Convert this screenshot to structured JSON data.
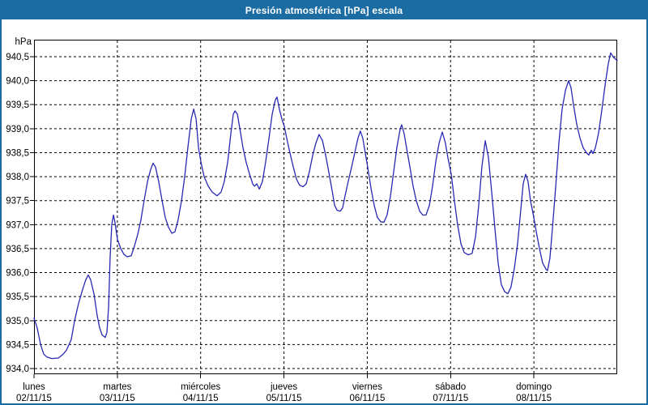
{
  "window": {
    "title": "Presión atmosférica [hPa] escala"
  },
  "colors": {
    "titlebar_bg": "#1b6ca3",
    "window_border": "#1b6ca3",
    "plot_frame": "#000000",
    "grid": "#000000",
    "line": "#2828b4",
    "text": "#000000",
    "title_text": "#ffffff",
    "background": "#ffffff"
  },
  "chart_data": {
    "type": "line",
    "title": "Presión atmosférica [hPa] escala",
    "grid": "dashed",
    "legend": "none",
    "y_axis": {
      "unit_label": "hPa",
      "min": 934.0,
      "max": 940.5,
      "tick_step": 0.5,
      "tick_labels": [
        "940,5",
        "940,0",
        "939,5",
        "939,0",
        "938,5",
        "938,0",
        "937,5",
        "937,0",
        "936,5",
        "936,0",
        "935,5",
        "935,0",
        "934,5",
        "934,0"
      ]
    },
    "x_axis": {
      "hours_total": 168,
      "days": [
        {
          "name": "lunes",
          "date": "02/11/15"
        },
        {
          "name": "martes",
          "date": "03/11/15"
        },
        {
          "name": "miércoles",
          "date": "04/11/15"
        },
        {
          "name": "jueves",
          "date": "05/11/15"
        },
        {
          "name": "viernes",
          "date": "06/11/15"
        },
        {
          "name": "sábado",
          "date": "07/11/15"
        },
        {
          "name": "domingo",
          "date": "08/11/15"
        }
      ]
    },
    "series": [
      {
        "name": "Presión atmosférica [hPa]",
        "points": [
          [
            0,
            935.05
          ],
          [
            0.9,
            934.85
          ],
          [
            1.9,
            934.5
          ],
          [
            2.8,
            934.3
          ],
          [
            3.7,
            934.24
          ],
          [
            5.1,
            934.21
          ],
          [
            7,
            934.22
          ],
          [
            8.4,
            934.3
          ],
          [
            9.3,
            934.38
          ],
          [
            10.7,
            934.6
          ],
          [
            11.7,
            935.0
          ],
          [
            12.8,
            935.35
          ],
          [
            14,
            935.65
          ],
          [
            14.9,
            935.85
          ],
          [
            15.6,
            935.95
          ],
          [
            16.3,
            935.85
          ],
          [
            17.3,
            935.55
          ],
          [
            18.2,
            935.1
          ],
          [
            18.9,
            934.85
          ],
          [
            19.6,
            934.7
          ],
          [
            20.5,
            934.65
          ],
          [
            21,
            934.75
          ],
          [
            21.5,
            935.3
          ],
          [
            21.9,
            936.3
          ],
          [
            22.4,
            937.0
          ],
          [
            22.9,
            937.2
          ],
          [
            23.3,
            937.05
          ],
          [
            24,
            936.7
          ],
          [
            25,
            936.5
          ],
          [
            25.9,
            936.38
          ],
          [
            26.8,
            936.33
          ],
          [
            28,
            936.35
          ],
          [
            28.9,
            936.55
          ],
          [
            29.9,
            936.8
          ],
          [
            30.8,
            937.1
          ],
          [
            31.7,
            937.5
          ],
          [
            32.7,
            937.9
          ],
          [
            33.6,
            938.15
          ],
          [
            34.3,
            938.28
          ],
          [
            35,
            938.2
          ],
          [
            35.9,
            937.9
          ],
          [
            36.9,
            937.5
          ],
          [
            37.8,
            937.15
          ],
          [
            38.7,
            936.95
          ],
          [
            39.7,
            936.82
          ],
          [
            40.6,
            936.85
          ],
          [
            41.5,
            937.1
          ],
          [
            42.5,
            937.5
          ],
          [
            43.4,
            938.0
          ],
          [
            44.3,
            938.6
          ],
          [
            45.3,
            939.2
          ],
          [
            46,
            939.41
          ],
          [
            46.7,
            939.2
          ],
          [
            47.4,
            938.6
          ],
          [
            48.1,
            938.3
          ],
          [
            49,
            938.0
          ],
          [
            50.2,
            937.8
          ],
          [
            51.3,
            937.68
          ],
          [
            52.7,
            937.6
          ],
          [
            53.9,
            937.68
          ],
          [
            54.8,
            937.9
          ],
          [
            55.8,
            938.3
          ],
          [
            56.7,
            938.9
          ],
          [
            57.4,
            939.3
          ],
          [
            57.9,
            939.37
          ],
          [
            58.6,
            939.3
          ],
          [
            59.3,
            939.0
          ],
          [
            60.2,
            938.6
          ],
          [
            61.1,
            938.3
          ],
          [
            62.1,
            938.05
          ],
          [
            63,
            937.85
          ],
          [
            63.5,
            937.8
          ],
          [
            64.2,
            937.85
          ],
          [
            64.9,
            937.74
          ],
          [
            65.8,
            937.9
          ],
          [
            66.7,
            938.3
          ],
          [
            67.7,
            938.8
          ],
          [
            68.6,
            939.3
          ],
          [
            69.5,
            939.6
          ],
          [
            70,
            939.66
          ],
          [
            70.7,
            939.4
          ],
          [
            71.4,
            939.2
          ],
          [
            72.1,
            939.05
          ],
          [
            72.8,
            938.8
          ],
          [
            73.7,
            938.5
          ],
          [
            74.7,
            938.2
          ],
          [
            75.6,
            937.95
          ],
          [
            76.5,
            937.82
          ],
          [
            77.5,
            937.79
          ],
          [
            78.4,
            937.85
          ],
          [
            79.3,
            938.1
          ],
          [
            80.3,
            938.45
          ],
          [
            81.2,
            938.7
          ],
          [
            82.1,
            938.88
          ],
          [
            83.1,
            938.75
          ],
          [
            84,
            938.45
          ],
          [
            84.9,
            938.1
          ],
          [
            85.9,
            937.7
          ],
          [
            86.6,
            937.4
          ],
          [
            87.3,
            937.3
          ],
          [
            88.2,
            937.28
          ],
          [
            88.9,
            937.35
          ],
          [
            89.6,
            937.6
          ],
          [
            90.5,
            937.9
          ],
          [
            91.5,
            938.2
          ],
          [
            92.4,
            938.5
          ],
          [
            93.3,
            938.8
          ],
          [
            94,
            938.95
          ],
          [
            94.7,
            938.8
          ],
          [
            95.4,
            938.5
          ],
          [
            96.1,
            938.2
          ],
          [
            97.1,
            937.75
          ],
          [
            98,
            937.4
          ],
          [
            98.9,
            937.15
          ],
          [
            99.9,
            937.06
          ],
          [
            100.8,
            937.05
          ],
          [
            101.7,
            937.2
          ],
          [
            102.7,
            937.6
          ],
          [
            103.6,
            938.1
          ],
          [
            104.5,
            938.6
          ],
          [
            105.5,
            939.0
          ],
          [
            105.9,
            939.08
          ],
          [
            106.6,
            938.9
          ],
          [
            107.3,
            938.6
          ],
          [
            108.3,
            938.2
          ],
          [
            109.2,
            937.8
          ],
          [
            110.1,
            937.5
          ],
          [
            111.1,
            937.28
          ],
          [
            112,
            937.2
          ],
          [
            112.9,
            937.2
          ],
          [
            113.9,
            937.4
          ],
          [
            114.8,
            937.8
          ],
          [
            115.7,
            938.3
          ],
          [
            116.7,
            938.7
          ],
          [
            117.6,
            938.93
          ],
          [
            118.5,
            938.7
          ],
          [
            119.2,
            938.4
          ],
          [
            120.2,
            938.05
          ],
          [
            121.1,
            937.5
          ],
          [
            122,
            937.0
          ],
          [
            123,
            936.6
          ],
          [
            123.9,
            936.42
          ],
          [
            125.1,
            936.37
          ],
          [
            126.2,
            936.4
          ],
          [
            127.2,
            936.75
          ],
          [
            128.1,
            937.4
          ],
          [
            129,
            938.2
          ],
          [
            130,
            938.75
          ],
          [
            130.9,
            938.4
          ],
          [
            131.8,
            937.7
          ],
          [
            132.8,
            936.9
          ],
          [
            133.7,
            936.2
          ],
          [
            134.6,
            935.75
          ],
          [
            135.6,
            935.6
          ],
          [
            136.5,
            935.56
          ],
          [
            137.4,
            935.7
          ],
          [
            138.4,
            936.1
          ],
          [
            139.3,
            936.6
          ],
          [
            140.2,
            937.3
          ],
          [
            140.9,
            937.85
          ],
          [
            141.6,
            938.05
          ],
          [
            142.3,
            937.9
          ],
          [
            143,
            937.5
          ],
          [
            143.7,
            937.25
          ],
          [
            144.2,
            937.05
          ],
          [
            144.7,
            936.85
          ],
          [
            145.6,
            936.5
          ],
          [
            146.5,
            936.2
          ],
          [
            147.5,
            936.07
          ],
          [
            147.9,
            936.04
          ],
          [
            148.6,
            936.3
          ],
          [
            149.3,
            936.9
          ],
          [
            150.3,
            937.8
          ],
          [
            151.2,
            938.7
          ],
          [
            152.1,
            939.4
          ],
          [
            153.1,
            939.8
          ],
          [
            154,
            940.0
          ],
          [
            154.7,
            939.85
          ],
          [
            155.4,
            939.5
          ],
          [
            156.3,
            939.1
          ],
          [
            157.3,
            938.8
          ],
          [
            158.2,
            938.6
          ],
          [
            159.1,
            938.5
          ],
          [
            159.8,
            938.45
          ],
          [
            160.5,
            938.55
          ],
          [
            161,
            938.48
          ],
          [
            161.7,
            938.6
          ],
          [
            162.6,
            938.9
          ],
          [
            163.6,
            939.4
          ],
          [
            164.5,
            939.9
          ],
          [
            165.4,
            940.35
          ],
          [
            166.1,
            940.58
          ],
          [
            166.8,
            940.5
          ],
          [
            167.5,
            940.45
          ],
          [
            168,
            940.42
          ]
        ]
      }
    ]
  }
}
